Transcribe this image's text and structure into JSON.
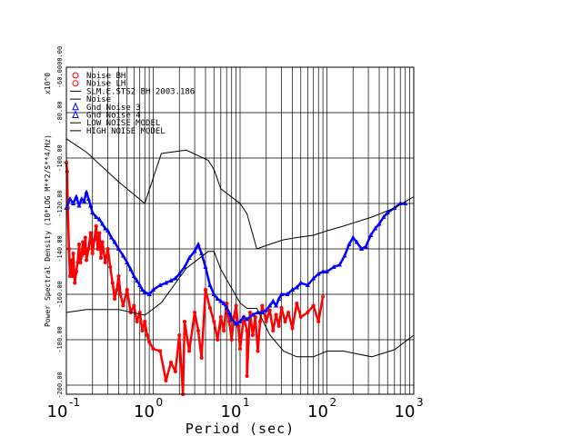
{
  "chart_data": {
    "type": "scatter",
    "x_scale": "log",
    "xlabel": "Period (sec)",
    "ylabel": "Power Spectral Density (10*LOG M**2/S**4/Hz)",
    "y_multiplier": "x10^0",
    "xlim": [
      0.1,
      1000
    ],
    "ylim": [
      -204,
      -60
    ],
    "grid": true,
    "legend_position": "top-left",
    "x_ticks": [
      {
        "value": 0.1,
        "base": "10",
        "exp": "-1"
      },
      {
        "value": 1,
        "base": "10",
        "exp": "0"
      },
      {
        "value": 10,
        "base": "10",
        "exp": "1"
      },
      {
        "value": 100,
        "base": "10",
        "exp": "2"
      },
      {
        "value": 1000,
        "base": "10",
        "exp": "3"
      }
    ],
    "y_ticks": [
      -60.0,
      -80.0,
      -100.0,
      -120.0,
      -140.0,
      -160.0,
      -180.0,
      -200.0
    ],
    "y_tick_labels": [
      "-60.0000.00",
      "-80.00",
      "-100.00",
      "-120.00",
      "-140.00",
      "-160.00",
      "-180.00",
      "-200.00"
    ],
    "legend": [
      {
        "label": "Noise BH",
        "marker": "circle",
        "color": "#ff0000"
      },
      {
        "label": "Noise LH",
        "marker": "circle",
        "color": "#ff0000"
      },
      {
        "label": "SLM.E.STS2 BH  2003.186",
        "marker": "line",
        "color": "#000000"
      },
      {
        "label": "Noise",
        "marker": "line",
        "color": "#000000"
      },
      {
        "label": "Gnd Noise 3",
        "marker": "triangle",
        "color": "#0000ff"
      },
      {
        "label": "Gnd Noise 4",
        "marker": "triangle",
        "color": "#0000ff"
      },
      {
        "label": "LOW NOISE MODEL",
        "marker": "line",
        "color": "#000000"
      },
      {
        "label": "HIGH NOISE MODEL",
        "marker": "line",
        "color": "#000000"
      }
    ],
    "series": [
      {
        "name": "Noise BH",
        "color": "#ff0000",
        "marker": "circle",
        "points": [
          [
            0.1,
            -102
          ],
          [
            0.102,
            -106
          ],
          [
            0.104,
            -122
          ],
          [
            0.107,
            -140
          ],
          [
            0.11,
            -152
          ],
          [
            0.113,
            -145
          ],
          [
            0.118,
            -152
          ],
          [
            0.12,
            -142
          ],
          [
            0.125,
            -155
          ],
          [
            0.13,
            -150
          ],
          [
            0.135,
            -146
          ],
          [
            0.14,
            -138
          ],
          [
            0.145,
            -146
          ],
          [
            0.15,
            -143
          ],
          [
            0.155,
            -137
          ],
          [
            0.16,
            -142
          ],
          [
            0.165,
            -135
          ],
          [
            0.17,
            -145
          ],
          [
            0.18,
            -140
          ],
          [
            0.19,
            -133
          ],
          [
            0.2,
            -142
          ],
          [
            0.21,
            -136
          ],
          [
            0.22,
            -130
          ],
          [
            0.23,
            -140
          ],
          [
            0.24,
            -133
          ],
          [
            0.25,
            -144
          ],
          [
            0.26,
            -137
          ],
          [
            0.28,
            -146
          ],
          [
            0.3,
            -140
          ],
          [
            0.32,
            -148
          ],
          [
            0.34,
            -155
          ],
          [
            0.36,
            -162
          ],
          [
            0.38,
            -158
          ],
          [
            0.4,
            -152
          ],
          [
            0.42,
            -160
          ],
          [
            0.45,
            -165
          ],
          [
            0.5,
            -158
          ],
          [
            0.55,
            -168
          ],
          [
            0.6,
            -165
          ],
          [
            0.65,
            -172
          ],
          [
            0.7,
            -168
          ],
          [
            0.75,
            -176
          ],
          [
            0.8,
            -172
          ],
          [
            0.85,
            -178
          ],
          [
            0.9,
            -181
          ],
          [
            1.0,
            -184
          ],
          [
            1.2,
            -185
          ],
          [
            1.4,
            -198
          ],
          [
            1.6,
            -190
          ],
          [
            1.8,
            -194
          ],
          [
            2.0,
            -178
          ],
          [
            2.3,
            -172
          ],
          [
            2.6,
            -185
          ],
          [
            3.0,
            -168
          ],
          [
            3.3,
            -176
          ],
          [
            3.6,
            -188
          ],
          [
            4.0,
            -158
          ],
          [
            4.5,
            -166
          ],
          [
            5.0,
            -172
          ],
          [
            5.5,
            -180
          ],
          [
            6.0,
            -170
          ],
          [
            6.5,
            -176
          ],
          [
            7.0,
            -164
          ],
          [
            7.5,
            -172
          ],
          [
            8.0,
            -180
          ],
          [
            8.5,
            -170
          ],
          [
            9.0,
            -165
          ],
          [
            9.5,
            -174
          ],
          [
            10,
            -184
          ],
          [
            11,
            -170
          ],
          [
            12,
            -176
          ],
          [
            13,
            -168
          ],
          [
            14,
            -178
          ],
          [
            15,
            -170
          ],
          [
            16,
            -185
          ],
          [
            17,
            -172
          ],
          [
            18,
            -165
          ],
          [
            20,
            -172
          ],
          [
            22,
            -167
          ],
          [
            24,
            -176
          ],
          [
            26,
            -169
          ],
          [
            28,
            -174
          ],
          [
            30,
            -166
          ],
          [
            33,
            -172
          ],
          [
            36,
            -168
          ],
          [
            40,
            -175
          ],
          [
            45,
            -164
          ],
          [
            50,
            -170
          ],
          [
            60,
            -168
          ],
          [
            70,
            -165
          ],
          [
            80,
            -172
          ],
          [
            90,
            -161
          ],
          [
            2.2,
            -204
          ],
          [
            12,
            -196
          ]
        ]
      },
      {
        "name": "Gnd Noise 3",
        "color": "#0000ff",
        "marker": "triangle",
        "points": [
          [
            0.1,
            -122
          ],
          [
            0.11,
            -118
          ],
          [
            0.12,
            -120
          ],
          [
            0.13,
            -117
          ],
          [
            0.14,
            -121
          ],
          [
            0.15,
            -118
          ],
          [
            0.16,
            -119
          ],
          [
            0.17,
            -115
          ],
          [
            0.18,
            -118
          ],
          [
            0.19,
            -121
          ],
          [
            0.2,
            -124
          ],
          [
            0.22,
            -126
          ],
          [
            0.24,
            -127
          ],
          [
            0.26,
            -129
          ],
          [
            0.28,
            -131
          ],
          [
            0.3,
            -132
          ],
          [
            0.33,
            -135
          ],
          [
            0.36,
            -137
          ],
          [
            0.4,
            -140
          ],
          [
            0.45,
            -143
          ],
          [
            0.5,
            -146
          ],
          [
            0.55,
            -149
          ],
          [
            0.6,
            -152
          ],
          [
            0.65,
            -154
          ],
          [
            0.7,
            -156
          ],
          [
            0.75,
            -158
          ],
          [
            0.8,
            -159
          ],
          [
            0.9,
            -160
          ],
          [
            1.0,
            -158
          ],
          [
            1.2,
            -156
          ],
          [
            1.4,
            -155
          ],
          [
            1.6,
            -154
          ],
          [
            1.8,
            -153
          ],
          [
            2.0,
            -151
          ],
          [
            2.3,
            -148
          ],
          [
            2.6,
            -144
          ],
          [
            3.0,
            -141
          ],
          [
            3.3,
            -138
          ],
          [
            3.6,
            -142
          ],
          [
            4.0,
            -148
          ],
          [
            4.5,
            -156
          ],
          [
            5.0,
            -160
          ],
          [
            5.5,
            -162
          ],
          [
            6.0,
            -163
          ],
          [
            6.5,
            -164
          ],
          [
            7.0,
            -166
          ],
          [
            7.5,
            -168
          ],
          [
            8.0,
            -171
          ],
          [
            9.0,
            -173
          ],
          [
            10,
            -172
          ],
          [
            11,
            -170
          ],
          [
            12,
            -171
          ],
          [
            14,
            -169
          ],
          [
            16,
            -168
          ],
          [
            18,
            -168
          ],
          [
            20,
            -167
          ],
          [
            22,
            -165
          ],
          [
            24,
            -163
          ],
          [
            26,
            -165
          ],
          [
            28,
            -162
          ],
          [
            30,
            -160
          ],
          [
            35,
            -160
          ],
          [
            40,
            -158
          ],
          [
            45,
            -157
          ],
          [
            50,
            -155
          ],
          [
            60,
            -156
          ],
          [
            70,
            -153
          ],
          [
            80,
            -151
          ],
          [
            90,
            -150
          ],
          [
            100,
            -150
          ],
          [
            120,
            -148
          ],
          [
            140,
            -147
          ],
          [
            160,
            -143
          ],
          [
            180,
            -138
          ],
          [
            200,
            -135
          ],
          [
            220,
            -137
          ],
          [
            250,
            -140
          ],
          [
            280,
            -139
          ],
          [
            320,
            -134
          ],
          [
            360,
            -131
          ],
          [
            400,
            -129
          ],
          [
            450,
            -126
          ],
          [
            500,
            -124
          ],
          [
            600,
            -122
          ],
          [
            700,
            -120
          ],
          [
            800,
            -120
          ]
        ]
      },
      {
        "name": "HIGH NOISE MODEL",
        "color": "#000000",
        "marker": "line",
        "points": [
          [
            0.1,
            -91.5
          ],
          [
            0.17,
            -97.4
          ],
          [
            0.4,
            -110.5
          ],
          [
            0.8,
            -120
          ],
          [
            1.24,
            -98
          ],
          [
            2.4,
            -96.5
          ],
          [
            4.3,
            -101
          ],
          [
            5.0,
            -105
          ],
          [
            6.0,
            -113.5
          ],
          [
            10,
            -120
          ],
          [
            12,
            -124.5
          ],
          [
            15.6,
            -140
          ],
          [
            21.9,
            -138
          ],
          [
            31.6,
            -136
          ],
          [
            45,
            -135
          ],
          [
            70,
            -134
          ],
          [
            101,
            -132
          ],
          [
            154,
            -130
          ],
          [
            328,
            -126
          ],
          [
            600,
            -122
          ],
          [
            1000,
            -117
          ]
        ]
      },
      {
        "name": "LOW NOISE MODEL",
        "color": "#000000",
        "marker": "line",
        "points": [
          [
            0.1,
            -168
          ],
          [
            0.17,
            -166.7
          ],
          [
            0.4,
            -166.7
          ],
          [
            0.8,
            -169.2
          ],
          [
            1.24,
            -163.7
          ],
          [
            2.4,
            -148.6
          ],
          [
            4.3,
            -141.1
          ],
          [
            5.0,
            -141.1
          ],
          [
            6.0,
            -149
          ],
          [
            10,
            -163.8
          ],
          [
            12,
            -166.2
          ],
          [
            15.6,
            -166.2
          ],
          [
            21.9,
            -177.7
          ],
          [
            31.6,
            -185
          ],
          [
            45,
            -187.5
          ],
          [
            70,
            -187.5
          ],
          [
            101,
            -185
          ],
          [
            154,
            -185
          ],
          [
            328,
            -187.5
          ],
          [
            600,
            -184.4
          ],
          [
            1000,
            -178
          ]
        ]
      }
    ]
  }
}
